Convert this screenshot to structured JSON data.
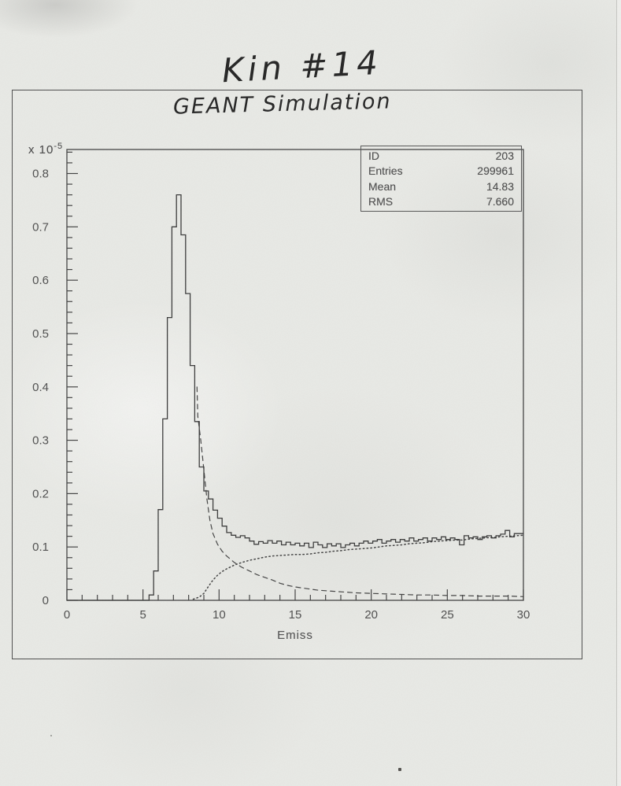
{
  "scan": {
    "handwritten_title": "Kin #14",
    "handwritten_subtitle": "GEANT Simulation"
  },
  "stats_box": {
    "rows": [
      {
        "label": "ID",
        "value": "203"
      },
      {
        "label": "Entries",
        "value": "299961"
      },
      {
        "label": "Mean",
        "value": "14.83"
      },
      {
        "label": "RMS",
        "value": "7.660"
      }
    ]
  },
  "chart_data": {
    "type": "line",
    "subtype": "step-histogram-with-overlaid-curves",
    "title": "GEANT Simulation",
    "xlabel": "Emiss",
    "ylabel": "",
    "y_scale": {
      "mantissa": "x 10",
      "exponent": "-5"
    },
    "xlim": [
      0,
      30
    ],
    "ylim": [
      0,
      0.845
    ],
    "xticks": [
      0,
      5,
      10,
      15,
      20,
      25,
      30
    ],
    "yticks": [
      0,
      0.1,
      0.2,
      0.3,
      0.4,
      0.5,
      0.6,
      0.7,
      0.8
    ],
    "x_minor_step": 1,
    "y_minor_step": 0.02,
    "grid": false,
    "legend": false,
    "values_unit": "1e-5",
    "histogram": {
      "name": "Emiss distribution (solid step histogram)",
      "style": "solid",
      "bin_start": 0,
      "bin_width": 0.3,
      "values": [
        0,
        0,
        0,
        0,
        0,
        0,
        0,
        0,
        0,
        0,
        0,
        0,
        0,
        0,
        0,
        0,
        0,
        0,
        0.01,
        0.055,
        0.17,
        0.34,
        0.53,
        0.7,
        0.76,
        0.685,
        0.575,
        0.44,
        0.335,
        0.25,
        0.205,
        0.19,
        0.169,
        0.154,
        0.139,
        0.127,
        0.122,
        0.118,
        0.121,
        0.117,
        0.111,
        0.105,
        0.11,
        0.107,
        0.112,
        0.107,
        0.111,
        0.104,
        0.109,
        0.104,
        0.107,
        0.102,
        0.107,
        0.099,
        0.109,
        0.104,
        0.099,
        0.106,
        0.102,
        0.106,
        0.099,
        0.104,
        0.107,
        0.102,
        0.107,
        0.111,
        0.107,
        0.111,
        0.114,
        0.107,
        0.111,
        0.114,
        0.109,
        0.114,
        0.111,
        0.117,
        0.111,
        0.114,
        0.117,
        0.111,
        0.117,
        0.114,
        0.119,
        0.114,
        0.117,
        0.114,
        0.104,
        0.121,
        0.117,
        0.119,
        0.114,
        0.119,
        0.121,
        0.117,
        0.121,
        0.124,
        0.131,
        0.119,
        0.125,
        0.125
      ]
    },
    "curves": [
      {
        "name": "falling peak-tail component (dashed)",
        "style": "dashed",
        "points": [
          [
            8.55,
            0.4
          ],
          [
            8.6,
            0.345
          ],
          [
            8.8,
            0.3
          ],
          [
            9.0,
            0.245
          ],
          [
            9.2,
            0.19
          ],
          [
            9.4,
            0.15
          ],
          [
            9.6,
            0.125
          ],
          [
            9.9,
            0.105
          ],
          [
            10.2,
            0.092
          ],
          [
            10.5,
            0.083
          ],
          [
            11,
            0.071
          ],
          [
            11.5,
            0.062
          ],
          [
            12,
            0.055
          ],
          [
            12.5,
            0.048
          ],
          [
            13,
            0.043
          ],
          [
            13.5,
            0.038
          ],
          [
            14,
            0.032
          ],
          [
            14.5,
            0.028
          ],
          [
            15,
            0.025
          ],
          [
            15.5,
            0.023
          ],
          [
            16,
            0.021
          ],
          [
            16.5,
            0.019
          ],
          [
            17,
            0.018
          ],
          [
            17.5,
            0.017
          ],
          [
            18,
            0.016
          ],
          [
            19,
            0.014
          ],
          [
            20,
            0.013
          ],
          [
            21,
            0.012
          ],
          [
            22,
            0.011
          ],
          [
            23,
            0.01
          ],
          [
            24,
            0.01
          ],
          [
            25,
            0.009
          ],
          [
            26,
            0.009
          ],
          [
            27,
            0.008
          ],
          [
            28,
            0.008
          ],
          [
            29,
            0.008
          ],
          [
            30,
            0.007
          ]
        ]
      },
      {
        "name": "rising background component (dotted)",
        "style": "dotted",
        "points": [
          [
            8.3,
            0.002
          ],
          [
            8.7,
            0.006
          ],
          [
            9.0,
            0.013
          ],
          [
            9.3,
            0.026
          ],
          [
            9.6,
            0.038
          ],
          [
            9.9,
            0.047
          ],
          [
            10.2,
            0.054
          ],
          [
            10.5,
            0.059
          ],
          [
            11,
            0.066
          ],
          [
            11.5,
            0.071
          ],
          [
            12,
            0.075
          ],
          [
            12.5,
            0.078
          ],
          [
            13,
            0.081
          ],
          [
            13.5,
            0.083
          ],
          [
            14,
            0.084
          ],
          [
            14.5,
            0.085
          ],
          [
            15,
            0.086
          ],
          [
            15.5,
            0.086
          ],
          [
            16,
            0.087
          ],
          [
            16.5,
            0.089
          ],
          [
            17,
            0.09
          ],
          [
            17.5,
            0.092
          ],
          [
            18,
            0.093
          ],
          [
            18.5,
            0.095
          ],
          [
            19,
            0.096
          ],
          [
            19.5,
            0.097
          ],
          [
            20,
            0.098
          ],
          [
            20.5,
            0.1
          ],
          [
            21,
            0.102
          ],
          [
            21.5,
            0.103
          ],
          [
            22,
            0.104
          ],
          [
            22.5,
            0.106
          ],
          [
            23,
            0.107
          ],
          [
            23.5,
            0.108
          ],
          [
            24,
            0.11
          ],
          [
            24.5,
            0.111
          ],
          [
            25,
            0.112
          ],
          [
            25.5,
            0.113
          ],
          [
            26,
            0.113
          ],
          [
            26.5,
            0.115
          ],
          [
            27,
            0.116
          ],
          [
            27.5,
            0.117
          ],
          [
            28,
            0.118
          ],
          [
            28.5,
            0.119
          ],
          [
            29,
            0.12
          ],
          [
            29.5,
            0.121
          ],
          [
            30,
            0.122
          ]
        ]
      }
    ],
    "stats": {
      "ID": "203",
      "Entries": "299961",
      "Mean": "14.83",
      "RMS": "7.660"
    }
  }
}
